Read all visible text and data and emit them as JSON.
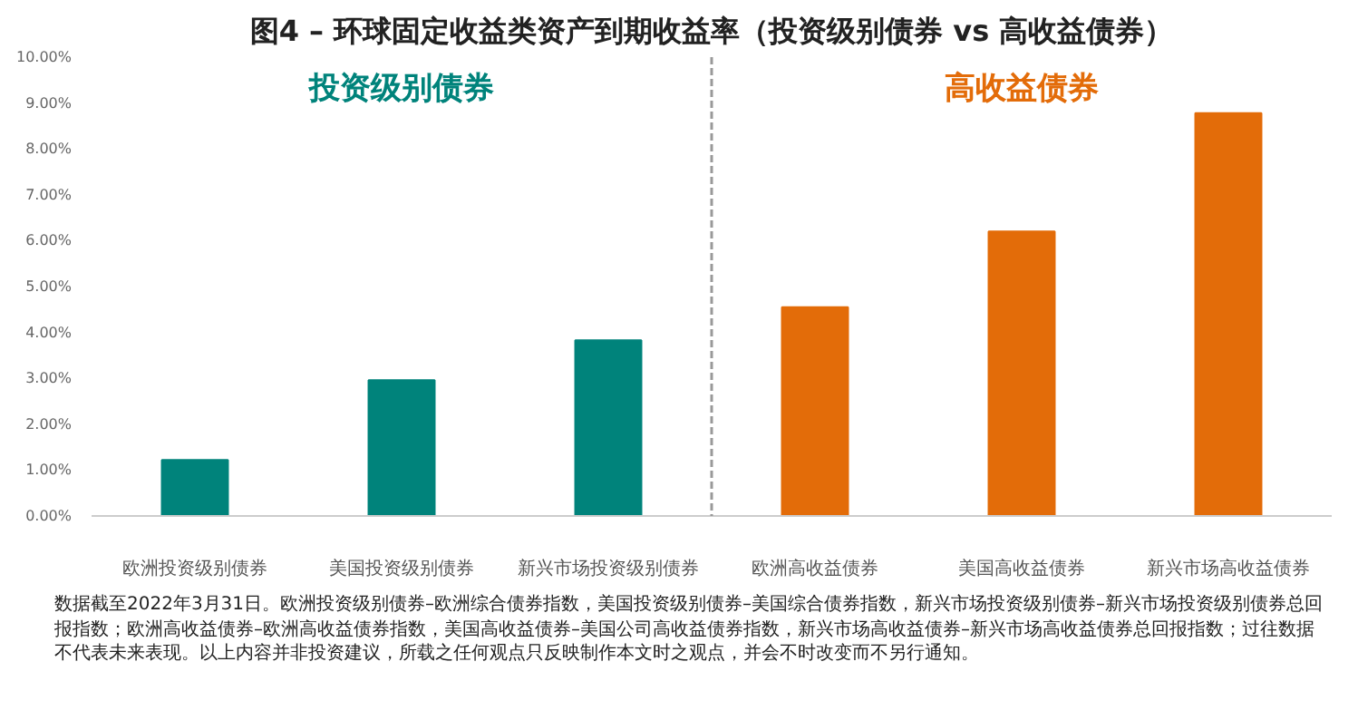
{
  "chart_data": {
    "type": "bar",
    "title": "图4 – 环球固定收益类资产到期收益率（投资级别债券 vs 高收益债券）",
    "categories": [
      "欧洲投资级别债券",
      "美国投资级别债券",
      "新兴市场投资级别债券",
      "欧洲高收益债券",
      "美国高收益债券",
      "新兴市场高收益债券"
    ],
    "series": [
      {
        "name": "投资级别债券",
        "color": "#00837b",
        "values": [
          1.22,
          2.96,
          3.83,
          null,
          null,
          null
        ]
      },
      {
        "name": "高收益债券",
        "color": "#e36c09",
        "values": [
          null,
          null,
          null,
          4.55,
          6.2,
          8.78
        ]
      }
    ],
    "ylim": [
      0,
      10
    ],
    "yticks": [
      {
        "value": 0,
        "label": "0.00%"
      },
      {
        "value": 1,
        "label": "1.00%"
      },
      {
        "value": 2,
        "label": "2.00%"
      },
      {
        "value": 3,
        "label": "3.00%"
      },
      {
        "value": 4,
        "label": "4.00%"
      },
      {
        "value": 5,
        "label": "5.00%"
      },
      {
        "value": 6,
        "label": "6.00%"
      },
      {
        "value": 7,
        "label": "7.00%"
      },
      {
        "value": 8,
        "label": "8.00%"
      },
      {
        "value": 9,
        "label": "9.00%"
      },
      {
        "value": 10,
        "label": "10.00%"
      }
    ],
    "grid": false,
    "annotations": [
      "数据截至2022年3月31日。欧洲投资级别债券–欧洲综合债券指数，美国投资级别债券–美国综合债券指数，新兴市场投资级别债券–新兴市场投资级别债券总回报指数；欧洲高收益债券–欧洲高收益债券指数，美国高收益债券–美国公司高收益债券指数，新兴市场高收益债券–新兴市场高收益债券总回报指数；过往数据不代表未来表现。以上内容并非投资建议，所载之任何观点只反映制作本文时之观点，并会不时改变而不另行通知。"
    ]
  }
}
